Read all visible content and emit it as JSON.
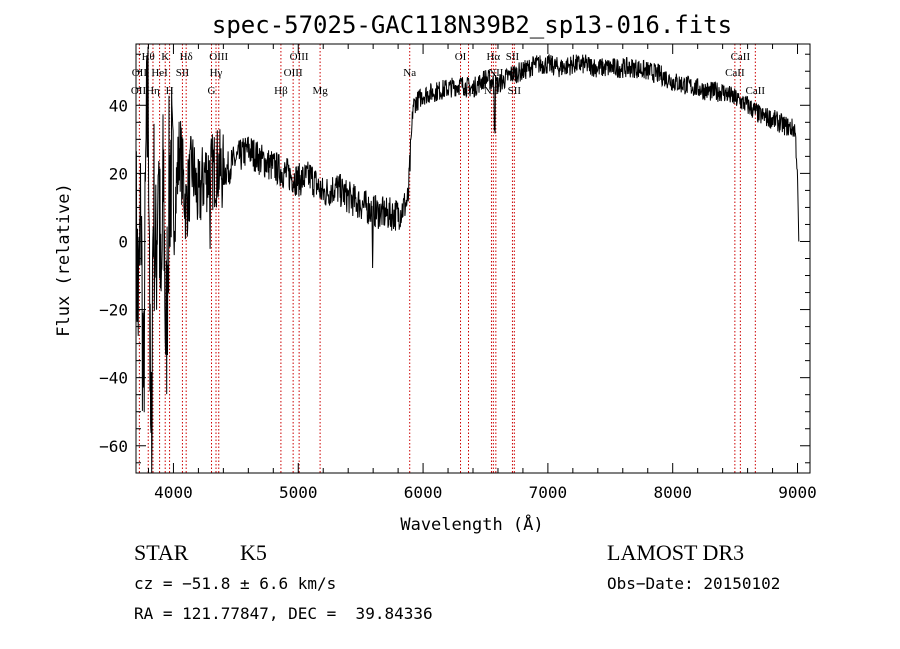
{
  "chart_data": {
    "type": "line",
    "title": "spec-57025-GAC118N39B2_sp13-016.fits",
    "xlabel": "Wavelength (Å)",
    "ylabel": "Flux (relative)",
    "xlim": [
      3700,
      9100
    ],
    "ylim": [
      -68,
      58
    ],
    "xticks": [
      4000,
      5000,
      6000,
      7000,
      8000,
      9000
    ],
    "yticks": [
      -60,
      -40,
      -20,
      0,
      20,
      40
    ],
    "spectrum_anchors": [
      [
        3700,
        5
      ],
      [
        3720,
        -20
      ],
      [
        3740,
        10
      ],
      [
        3760,
        -50
      ],
      [
        3780,
        25
      ],
      [
        3800,
        40
      ],
      [
        3820,
        -45
      ],
      [
        3840,
        15
      ],
      [
        3860,
        -10
      ],
      [
        3880,
        30
      ],
      [
        3900,
        -25
      ],
      [
        3920,
        20
      ],
      [
        3940,
        -35
      ],
      [
        3960,
        10
      ],
      [
        3980,
        25
      ],
      [
        4000,
        5
      ],
      [
        4050,
        28
      ],
      [
        4100,
        10
      ],
      [
        4150,
        22
      ],
      [
        4200,
        12
      ],
      [
        4250,
        20
      ],
      [
        4300,
        20
      ],
      [
        4350,
        22
      ],
      [
        4400,
        20
      ],
      [
        4500,
        24
      ],
      [
        4600,
        27
      ],
      [
        4700,
        24
      ],
      [
        4800,
        22
      ],
      [
        4900,
        20
      ],
      [
        5000,
        18
      ],
      [
        5100,
        19
      ],
      [
        5200,
        14
      ],
      [
        5300,
        16
      ],
      [
        5400,
        13
      ],
      [
        5500,
        11
      ],
      [
        5600,
        9
      ],
      [
        5700,
        8
      ],
      [
        5800,
        8
      ],
      [
        5880,
        12
      ],
      [
        5920,
        40
      ],
      [
        6000,
        43
      ],
      [
        6100,
        44
      ],
      [
        6200,
        45
      ],
      [
        6300,
        46
      ],
      [
        6400,
        45
      ],
      [
        6500,
        48
      ],
      [
        6600,
        46
      ],
      [
        6700,
        49
      ],
      [
        6800,
        50
      ],
      [
        6900,
        52
      ],
      [
        7000,
        52
      ],
      [
        7100,
        51
      ],
      [
        7200,
        52
      ],
      [
        7300,
        52
      ],
      [
        7400,
        51
      ],
      [
        7500,
        51
      ],
      [
        7600,
        51
      ],
      [
        7700,
        51
      ],
      [
        7800,
        50
      ],
      [
        7900,
        49
      ],
      [
        8000,
        47
      ],
      [
        8100,
        46
      ],
      [
        8200,
        45
      ],
      [
        8300,
        44
      ],
      [
        8400,
        44
      ],
      [
        8500,
        42
      ],
      [
        8600,
        40
      ],
      [
        8700,
        37
      ],
      [
        8800,
        36
      ],
      [
        8900,
        34
      ],
      [
        8980,
        33
      ],
      [
        9000,
        20
      ],
      [
        9010,
        0
      ]
    ],
    "spectral_lines": [
      {
        "label": "Hθ",
        "wavelength": 3798
      },
      {
        "label": "OII",
        "wavelength": 3727
      },
      {
        "label": "Hη",
        "wavelength": 3836
      },
      {
        "label": "K",
        "wavelength": 3934
      },
      {
        "label": "H",
        "wavelength": 3969
      },
      {
        "label": "HeI",
        "wavelength": 3889
      },
      {
        "label": "SII",
        "wavelength": 4072
      },
      {
        "label": "Hδ",
        "wavelength": 4102
      },
      {
        "label": "OIII",
        "wavelength": 4363
      },
      {
        "label": "Hγ",
        "wavelength": 4341
      },
      {
        "label": "G",
        "wavelength": 4305
      },
      {
        "label": "Hβ",
        "wavelength": 4861
      },
      {
        "label": "OIII",
        "wavelength": 4959
      },
      {
        "label": "OIII",
        "wavelength": 5007
      },
      {
        "label": "Mg",
        "wavelength": 5175
      },
      {
        "label": "Na",
        "wavelength": 5893
      },
      {
        "label": "OI",
        "wavelength": 6300
      },
      {
        "label": "OI",
        "wavelength": 6364
      },
      {
        "label": "Hα",
        "wavelength": 6563
      },
      {
        "label": "NII",
        "wavelength": 6548
      },
      {
        "label": "NII",
        "wavelength": 6583
      },
      {
        "label": "SII",
        "wavelength": 6716
      },
      {
        "label": "SII",
        "wavelength": 6731
      },
      {
        "label": "CaII",
        "wavelength": 8498
      },
      {
        "label": "CaII",
        "wavelength": 8542
      },
      {
        "label": "CaII",
        "wavelength": 8662
      }
    ],
    "line_color": "#000000",
    "marker_color": "#cc0000"
  },
  "info": {
    "object_class": "STAR",
    "subclass": "K5",
    "survey": "LAMOST DR3",
    "cz": "cz = −51.8 ± 6.6 km/s",
    "obs_date": "Obs−Date: 20150102",
    "coords": "RA = 121.77847, DEC =  39.84336"
  }
}
